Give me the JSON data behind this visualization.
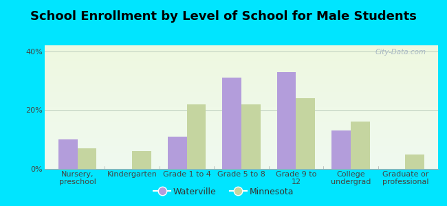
{
  "title": "School Enrollment by Level of School for Male Students",
  "categories": [
    "Nursery,\npreschool",
    "Kindergarten",
    "Grade 1 to 4",
    "Grade 5 to 8",
    "Grade 9 to\n12",
    "College\nundergrad",
    "Graduate or\nprofessional"
  ],
  "waterville": [
    10.0,
    0.0,
    11.0,
    31.0,
    33.0,
    13.0,
    0.0
  ],
  "minnesota": [
    7.0,
    6.0,
    22.0,
    22.0,
    24.0,
    16.0,
    5.0
  ],
  "waterville_color": "#b39ddb",
  "minnesota_color": "#c5d5a0",
  "background_color": "#00e5ff",
  "plot_bg_top": "#f0faf0",
  "plot_bg_bottom": "#eef8e0",
  "ylabel_ticks": [
    "0%",
    "20%",
    "40%"
  ],
  "yticks": [
    0,
    20,
    40
  ],
  "ylim": [
    0,
    42
  ],
  "title_fontsize": 13,
  "tick_fontsize": 8,
  "legend_fontsize": 9,
  "watermark_text": "City-Data.com"
}
